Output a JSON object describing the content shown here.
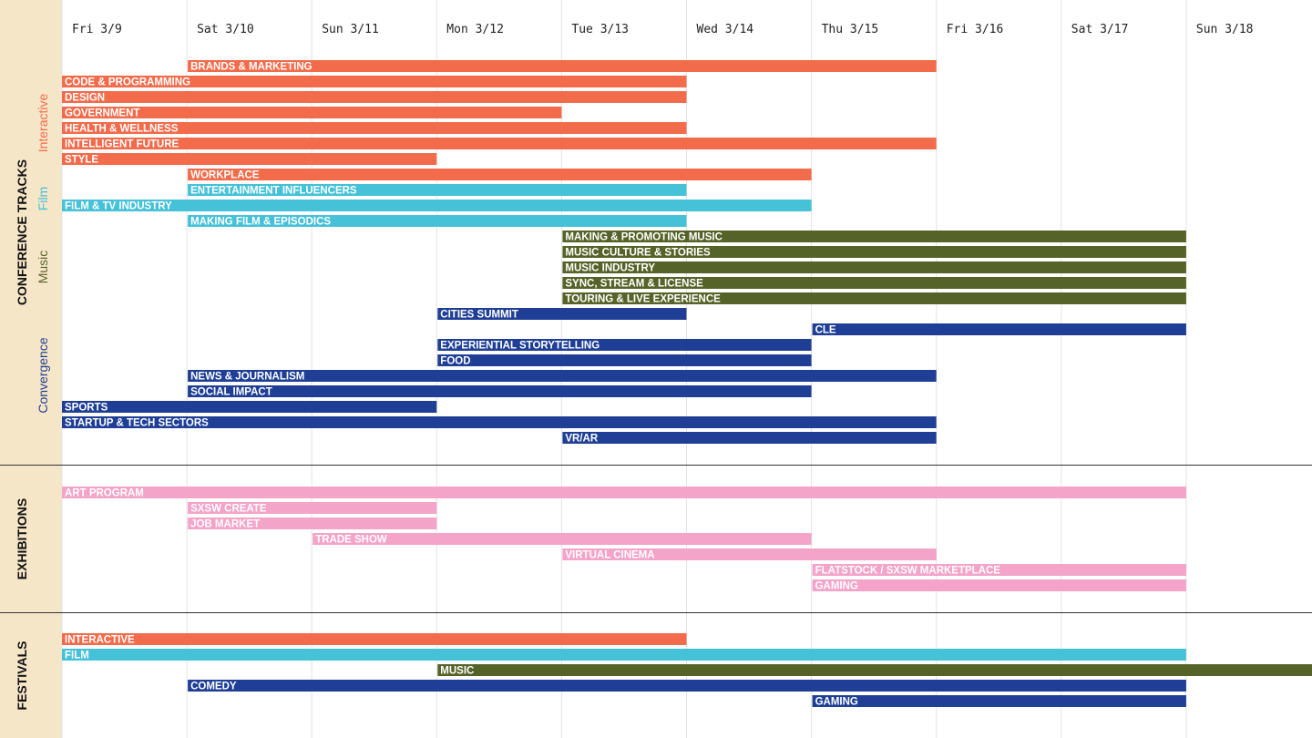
{
  "colors": {
    "interactive": "#f26b4b",
    "film": "#45c1d8",
    "music": "#566328",
    "convergence": "#1f3f96",
    "exhibition": "#f4a3c9",
    "sidebar": "#f6e6c8",
    "grid": "#e3e3e3",
    "divider": "#333333"
  },
  "chart_data": {
    "type": "gantt",
    "days": [
      "Fri 3/9",
      "Sat 3/10",
      "Sun 3/11",
      "Mon 3/12",
      "Tue 3/13",
      "Wed 3/14",
      "Thu 3/15",
      "Fri 3/16",
      "Sat 3/17",
      "Sun 3/18"
    ],
    "sections": [
      {
        "label": "CONFERENCE TRACKS",
        "groups": [
          {
            "label": "Interactive",
            "color": "#f26b4b"
          },
          {
            "label": "Film",
            "color": "#45c1d8"
          },
          {
            "label": "Music",
            "color": "#566328"
          },
          {
            "label": "Convergence",
            "color": "#1f3f96"
          }
        ],
        "bars": [
          {
            "label": "BRANDS & MARKETING",
            "start": "Sat 3/10",
            "end": "Thu 3/15",
            "category": "interactive"
          },
          {
            "label": "CODE & PROGRAMMING",
            "start": "Fri 3/9",
            "end": "Tue 3/13",
            "category": "interactive"
          },
          {
            "label": "DESIGN",
            "start": "Fri 3/9",
            "end": "Tue 3/13",
            "category": "interactive"
          },
          {
            "label": "GOVERNMENT",
            "start": "Fri 3/9",
            "end": "Mon 3/12",
            "category": "interactive"
          },
          {
            "label": "HEALTH & WELLNESS",
            "start": "Fri 3/9",
            "end": "Tue 3/13",
            "category": "interactive"
          },
          {
            "label": "INTELLIGENT FUTURE",
            "start": "Fri 3/9",
            "end": "Thu 3/15",
            "category": "interactive"
          },
          {
            "label": "STYLE",
            "start": "Fri 3/9",
            "end": "Sun 3/11",
            "category": "interactive"
          },
          {
            "label": "WORKPLACE",
            "start": "Sat 3/10",
            "end": "Wed 3/14",
            "category": "interactive"
          },
          {
            "label": "ENTERTAINMENT INFLUENCERS",
            "start": "Sat 3/10",
            "end": "Tue 3/13",
            "category": "film"
          },
          {
            "label": "FILM & TV INDUSTRY",
            "start": "Fri 3/9",
            "end": "Wed 3/14",
            "category": "film"
          },
          {
            "label": "MAKING FILM & EPISODICS",
            "start": "Sat 3/10",
            "end": "Tue 3/13",
            "category": "film"
          },
          {
            "label": "MAKING & PROMOTING MUSIC",
            "start": "Tue 3/13",
            "end": "Sat 3/17",
            "category": "music"
          },
          {
            "label": "MUSIC CULTURE & STORIES",
            "start": "Tue 3/13",
            "end": "Sat 3/17",
            "category": "music"
          },
          {
            "label": "MUSIC INDUSTRY",
            "start": "Tue 3/13",
            "end": "Sat 3/17",
            "category": "music"
          },
          {
            "label": "SYNC, STREAM & LICENSE",
            "start": "Tue 3/13",
            "end": "Sat 3/17",
            "category": "music"
          },
          {
            "label": "TOURING & LIVE EXPERIENCE",
            "start": "Tue 3/13",
            "end": "Sat 3/17",
            "category": "music"
          },
          {
            "label": "CITIES SUMMIT",
            "start": "Mon 3/12",
            "end": "Tue 3/13",
            "category": "convergence"
          },
          {
            "label": "CLE",
            "start": "Thu 3/15",
            "end": "Sat 3/17",
            "category": "convergence"
          },
          {
            "label": "EXPERIENTIAL STORYTELLING",
            "start": "Mon 3/12",
            "end": "Wed 3/14",
            "category": "convergence"
          },
          {
            "label": "FOOD",
            "start": "Mon 3/12",
            "end": "Wed 3/14",
            "category": "convergence"
          },
          {
            "label": "NEWS & JOURNALISM",
            "start": "Sat 3/10",
            "end": "Thu 3/15",
            "category": "convergence"
          },
          {
            "label": "SOCIAL IMPACT",
            "start": "Sat 3/10",
            "end": "Wed 3/14",
            "category": "convergence"
          },
          {
            "label": "SPORTS",
            "start": "Fri 3/9",
            "end": "Sun 3/11",
            "category": "convergence"
          },
          {
            "label": "STARTUP & TECH SECTORS",
            "start": "Fri 3/9",
            "end": "Thu 3/15",
            "category": "convergence"
          },
          {
            "label": "VR/AR",
            "start": "Tue 3/13",
            "end": "Thu 3/15",
            "category": "convergence"
          }
        ]
      },
      {
        "label": "EXHIBITIONS",
        "groups": [],
        "bars": [
          {
            "label": "ART PROGRAM",
            "start": "Fri 3/9",
            "end": "Sat 3/17",
            "category": "exhibition"
          },
          {
            "label": "SXSW CREATE",
            "start": "Sat 3/10",
            "end": "Sun 3/11",
            "category": "exhibition"
          },
          {
            "label": "JOB MARKET",
            "start": "Sat 3/10",
            "end": "Sun 3/11",
            "category": "exhibition"
          },
          {
            "label": "TRADE SHOW",
            "start": "Sun 3/11",
            "end": "Wed 3/14",
            "category": "exhibition"
          },
          {
            "label": "VIRTUAL CINEMA",
            "start": "Tue 3/13",
            "end": "Thu 3/15",
            "category": "exhibition"
          },
          {
            "label": "FLATSTOCK / SXSW MARKETPLACE",
            "start": "Thu 3/15",
            "end": "Sat 3/17",
            "category": "exhibition"
          },
          {
            "label": "GAMING",
            "start": "Thu 3/15",
            "end": "Sat 3/17",
            "category": "exhibition"
          }
        ]
      },
      {
        "label": "FESTIVALS",
        "groups": [],
        "bars": [
          {
            "label": "INTERACTIVE",
            "start": "Fri 3/9",
            "end": "Tue 3/13",
            "category": "interactive"
          },
          {
            "label": "FILM",
            "start": "Fri 3/9",
            "end": "Sat 3/17",
            "category": "film"
          },
          {
            "label": "MUSIC",
            "start": "Mon 3/12",
            "end": "Sun 3/18",
            "category": "music"
          },
          {
            "label": "COMEDY",
            "start": "Sat 3/10",
            "end": "Sat 3/17",
            "category": "convergence"
          },
          {
            "label": "GAMING",
            "start": "Thu 3/15",
            "end": "Sat 3/17",
            "category": "convergence"
          }
        ]
      }
    ]
  }
}
